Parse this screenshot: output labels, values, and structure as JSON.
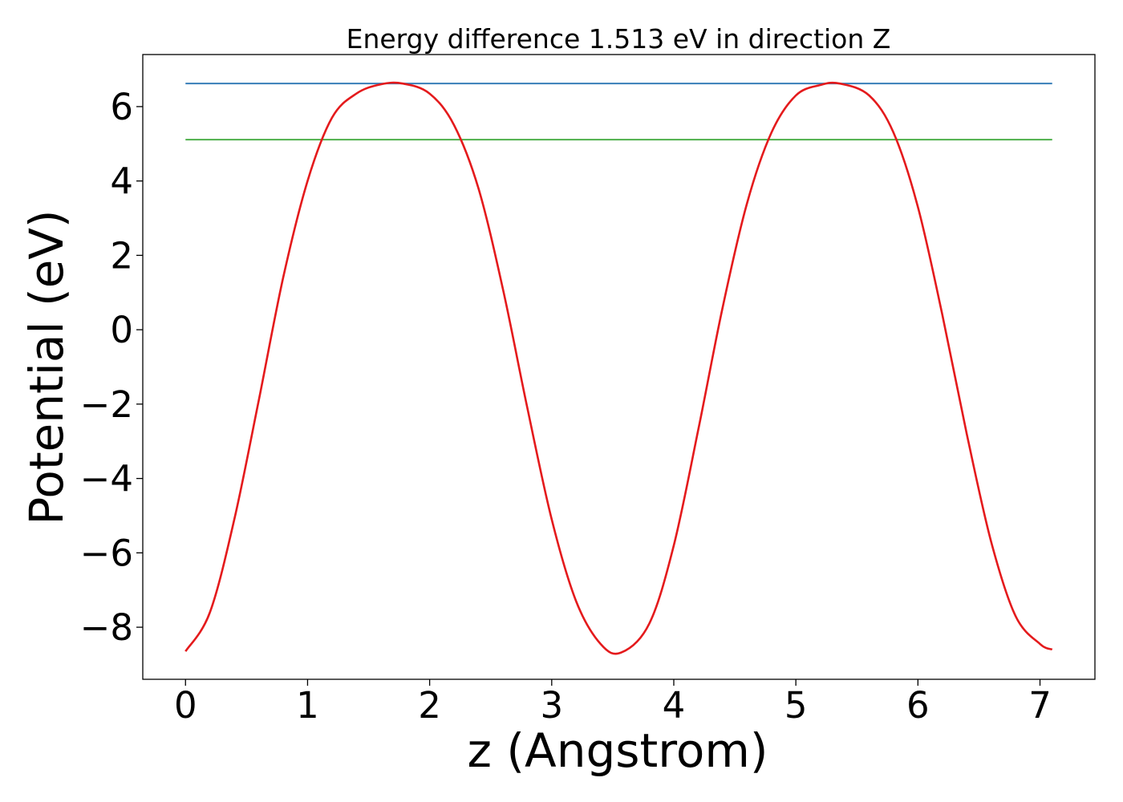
{
  "chart_data": {
    "type": "line",
    "title": "Energy difference 1.513 eV in direction Z",
    "xlabel": "z (Angstrom)",
    "ylabel": "Potential (eV)",
    "xlim": [
      -0.35,
      7.45
    ],
    "ylim": [
      -9.4,
      7.4
    ],
    "x_ticks": [
      0,
      1,
      2,
      3,
      4,
      5,
      6,
      7
    ],
    "x_tick_labels": [
      "0",
      "1",
      "2",
      "3",
      "4",
      "5",
      "6",
      "7"
    ],
    "y_ticks": [
      -8,
      -6,
      -4,
      -2,
      0,
      2,
      4,
      6
    ],
    "y_tick_labels": [
      "−8",
      "−6",
      "−4",
      "−2",
      "0",
      "2",
      "4",
      "6"
    ],
    "grid": false,
    "series": [
      {
        "kind": "curve",
        "color": "#e41a1c",
        "x": [
          0.0,
          0.2,
          0.4,
          0.6,
          0.8,
          1.0,
          1.2,
          1.4,
          1.6,
          1.78,
          2.0,
          2.2,
          2.4,
          2.6,
          2.8,
          3.0,
          3.2,
          3.4,
          3.57,
          3.8,
          4.0,
          4.2,
          4.4,
          4.6,
          4.8,
          5.0,
          5.2,
          5.36,
          5.6,
          5.8,
          6.0,
          6.2,
          6.4,
          6.6,
          6.8,
          7.0,
          7.1
        ],
        "y": [
          -8.65,
          -7.6,
          -5.1,
          -1.9,
          1.4,
          4.0,
          5.7,
          6.35,
          6.6,
          6.62,
          6.35,
          5.5,
          3.8,
          1.1,
          -2.1,
          -5.1,
          -7.3,
          -8.45,
          -8.68,
          -7.9,
          -5.8,
          -2.7,
          0.6,
          3.4,
          5.3,
          6.3,
          6.58,
          6.62,
          6.3,
          5.3,
          3.3,
          0.4,
          -2.8,
          -5.7,
          -7.7,
          -8.45,
          -8.6
        ]
      },
      {
        "kind": "hline",
        "color": "#377eb8",
        "x": [
          0.0,
          7.1
        ],
        "y": [
          6.62,
          6.62
        ]
      },
      {
        "kind": "hline",
        "color": "#4daf4a",
        "x": [
          0.0,
          7.1
        ],
        "y": [
          5.11,
          5.11
        ]
      }
    ]
  }
}
